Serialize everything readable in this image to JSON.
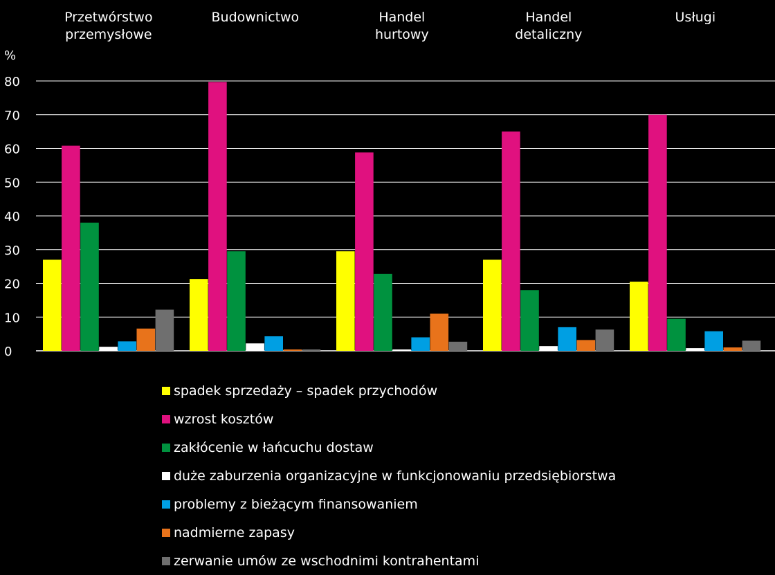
{
  "chart_data": {
    "type": "bar",
    "ylabel": "%",
    "ylim": [
      0,
      80
    ],
    "yticks": [
      0,
      10,
      20,
      30,
      40,
      50,
      60,
      70,
      80
    ],
    "grid": true,
    "legend_position": "bottom",
    "categories": [
      [
        "Przetwórstwo",
        "przemysłowe"
      ],
      [
        "Budownictwo"
      ],
      [
        "Handel",
        "hurtowy"
      ],
      [
        "Handel",
        "detaliczny"
      ],
      [
        "Usługi"
      ]
    ],
    "series": [
      {
        "name": "spadek sprzedaży – spadek przychodów",
        "color": "#ffff00",
        "values": [
          27,
          21.3,
          29.5,
          27,
          20.5
        ]
      },
      {
        "name": "wzrost kosztów",
        "color": "#e0117f",
        "values": [
          60.8,
          79.7,
          58.8,
          65,
          70
        ]
      },
      {
        "name": "zakłócenie w łańcuchu dostaw",
        "color": "#00923f",
        "values": [
          38,
          29.5,
          22.8,
          18,
          9.5
        ]
      },
      {
        "name": "duże zaburzenia organizacyjne w funkcjonowaniu przedsiębiorstwa",
        "color": "#ffffff",
        "values": [
          1.2,
          2.2,
          0.4,
          1.4,
          0.8
        ]
      },
      {
        "name": "problemy z bieżącym finansowaniem",
        "color": "#009fe3",
        "values": [
          2.8,
          4.3,
          4,
          7,
          5.8
        ]
      },
      {
        "name": "nadmierne zapasy",
        "color": "#e8731b",
        "values": [
          6.6,
          0.4,
          11,
          3.2,
          1
        ]
      },
      {
        "name": "zerwanie umów ze wschodnimi kontrahentami",
        "color": "#6f6f6f",
        "values": [
          12.2,
          0.4,
          2.7,
          6.3,
          3
        ]
      }
    ]
  }
}
